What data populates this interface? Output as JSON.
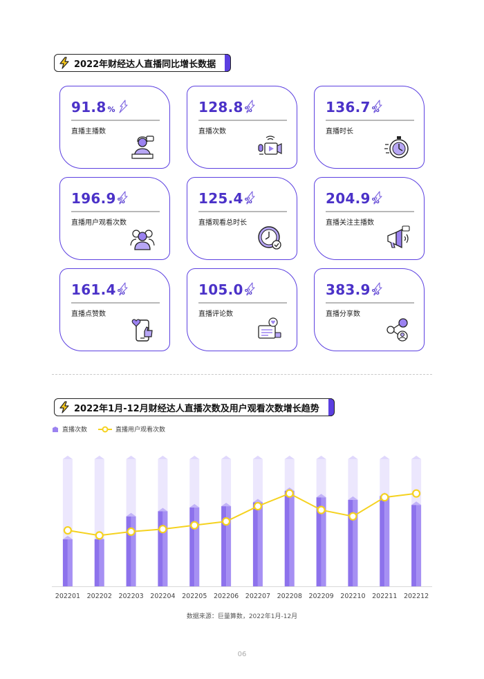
{
  "section1": {
    "title": "2022年财经达人直播同比增长数据"
  },
  "stats": [
    {
      "value": "91.8",
      "unit": "%",
      "label": "直播主播数",
      "icon": "streamer-icon"
    },
    {
      "value": "128.8",
      "unit": "%",
      "label": "直播次数",
      "icon": "camera-mic-icon"
    },
    {
      "value": "136.7",
      "unit": "%",
      "label": "直播时长",
      "icon": "stopwatch-icon"
    },
    {
      "value": "196.9",
      "unit": "%",
      "label": "直播用户观看次数",
      "icon": "audience-icon"
    },
    {
      "value": "125.4",
      "unit": "%",
      "label": "直播观看总时长",
      "icon": "clock-check-icon"
    },
    {
      "value": "204.9",
      "unit": "%",
      "label": "直播关注主播数",
      "icon": "megaphone-icon"
    },
    {
      "value": "161.4",
      "unit": "%",
      "label": "直播点赞数",
      "icon": "phone-like-icon"
    },
    {
      "value": "105.0",
      "unit": "%",
      "label": "直播评论数",
      "icon": "comment-icon"
    },
    {
      "value": "383.9",
      "unit": "%",
      "label": "直播分享数",
      "icon": "share-icon"
    }
  ],
  "section2": {
    "title": "2022年1月-12月财经达人直播次数及用户观看次数增长趋势"
  },
  "chart_data": {
    "type": "bar",
    "categories": [
      "202201",
      "202202",
      "202203",
      "202204",
      "202205",
      "202206",
      "202207",
      "202208",
      "202209",
      "202210",
      "202211",
      "202212"
    ],
    "series": [
      {
        "name": "直播次数",
        "type": "bar",
        "values": [
          37,
          37,
          55,
          59,
          62,
          63,
          66,
          75,
          70,
          68,
          71,
          64
        ]
      },
      {
        "name": "直播用户观看次数",
        "type": "line",
        "values": [
          44,
          40,
          43,
          45,
          48,
          51,
          63,
          73,
          60,
          55,
          70,
          73
        ]
      }
    ],
    "ylim": [
      0,
      100
    ],
    "grid": false,
    "legend": "top-left",
    "colors": {
      "bar": "#9b82f0",
      "bar_bg": "#ece7fd",
      "line": "#f5d21f"
    }
  },
  "source": "数据来源：巨量算数，2022年1月-12月",
  "page_number": "06"
}
